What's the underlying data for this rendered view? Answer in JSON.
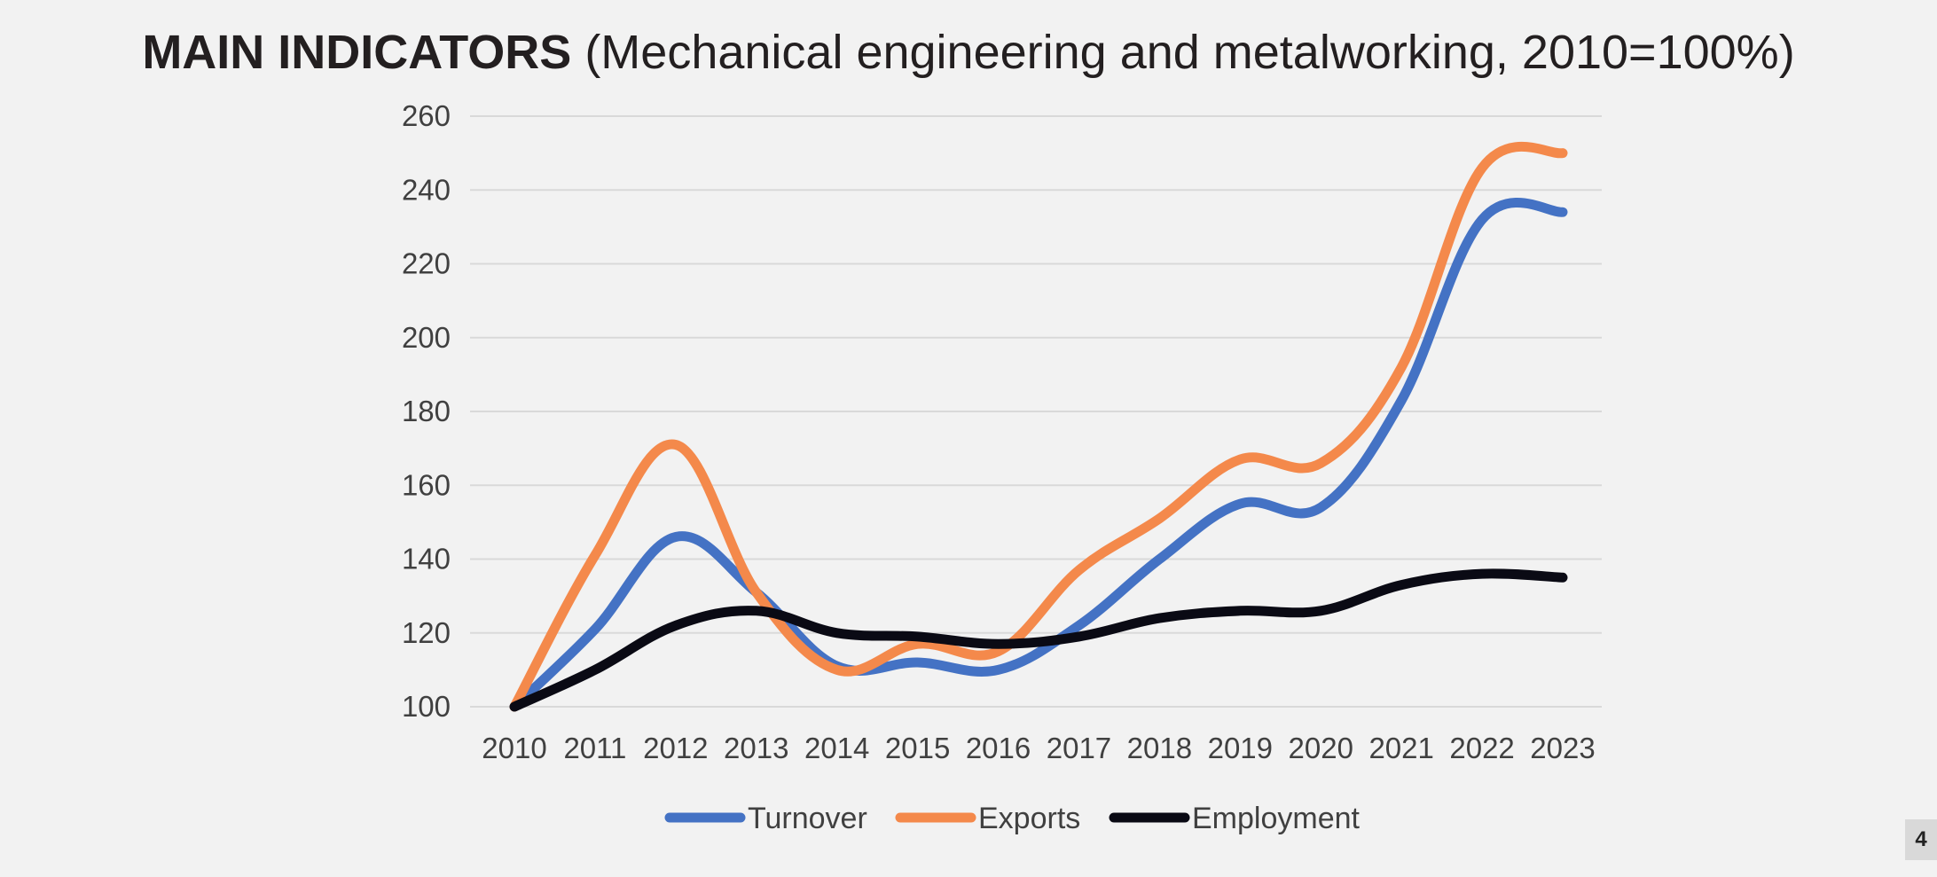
{
  "title": {
    "bold": "MAIN INDICATORS",
    "rest": "(Mechanical engineering and metalworking, 2010=100%)"
  },
  "page_number": "4",
  "chart_data": {
    "type": "line",
    "title": "MAIN INDICATORS (Mechanical engineering and metalworking, 2010=100%)",
    "xlabel": "",
    "ylabel": "",
    "categories": [
      "2010",
      "2011",
      "2012",
      "2013",
      "2014",
      "2015",
      "2016",
      "2017",
      "2018",
      "2019",
      "2020",
      "2021",
      "2022",
      "2023"
    ],
    "ylim": [
      100,
      260
    ],
    "yticks": [
      100,
      120,
      140,
      160,
      180,
      200,
      220,
      240,
      260
    ],
    "grid": true,
    "legend_position": "bottom",
    "smooth": true,
    "series": [
      {
        "name": "Turnover",
        "color": "#4472c4",
        "values": [
          100,
          121,
          146,
          131,
          111,
          112,
          110,
          122,
          140,
          155,
          154,
          183,
          232,
          234
        ]
      },
      {
        "name": "Exports",
        "color": "#f4894b",
        "values": [
          100,
          141,
          171,
          131,
          110,
          117,
          115,
          137,
          151,
          167,
          166,
          192,
          246,
          250
        ]
      },
      {
        "name": "Employment",
        "color": "#0a0a14",
        "values": [
          100,
          110,
          122,
          126,
          120,
          119,
          117,
          119,
          124,
          126,
          126,
          133,
          136,
          135
        ]
      }
    ]
  }
}
